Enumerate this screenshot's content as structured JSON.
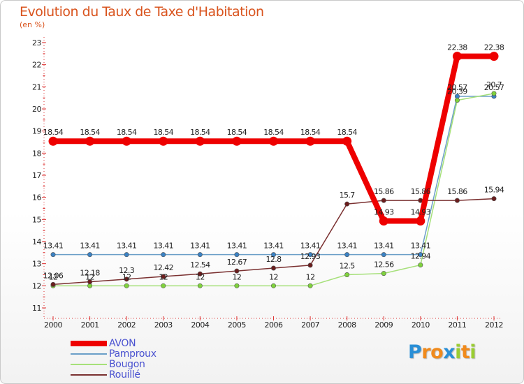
{
  "chart_data": {
    "type": "line",
    "title": "Evolution du Taux de Taxe d'Habitation",
    "subtitle": "(en %)",
    "xlabel": "",
    "ylabel": "(en %)",
    "categories": [
      "2000",
      "2001",
      "2002",
      "2003",
      "2004",
      "2005",
      "2006",
      "2007",
      "2008",
      "2009",
      "2010",
      "2011",
      "2012"
    ],
    "ylim": [
      11,
      23
    ],
    "yticks": [
      "11",
      "12",
      "13",
      "14",
      "15",
      "16",
      "17",
      "18",
      "19",
      "20",
      "21",
      "22",
      "23"
    ],
    "grid": false,
    "legend_position": "bottom-left",
    "series": [
      {
        "name": "AVON",
        "color": "#ee0000",
        "emphasis": true,
        "values": [
          18.54,
          18.54,
          18.54,
          18.54,
          18.54,
          18.54,
          18.54,
          18.54,
          18.54,
          14.93,
          14.93,
          22.38,
          22.38
        ],
        "labels": [
          "18.54",
          "18.54",
          "18.54",
          "18.54",
          "18.54",
          "18.54",
          "18.54",
          "18.54",
          "18.54",
          "14.93",
          "14.93",
          "22.38",
          "22.38"
        ]
      },
      {
        "name": "Pamproux",
        "color": "#6b9fc8",
        "point_color": "#3b82c4",
        "values": [
          13.41,
          13.41,
          13.41,
          13.41,
          13.41,
          13.41,
          13.41,
          13.41,
          13.41,
          13.41,
          13.41,
          20.57,
          20.57
        ],
        "labels": [
          "13.41",
          "13.41",
          "13.41",
          "13.41",
          "13.41",
          "13.41",
          "13.41",
          "13.41",
          "13.41",
          "13.41",
          "13.41",
          "20.57",
          "20.57"
        ]
      },
      {
        "name": "Bougon",
        "color": "#a6e07a",
        "point_color": "#7fd23c",
        "values": [
          12,
          12,
          12,
          12,
          12,
          12,
          12,
          12,
          12.5,
          12.56,
          12.94,
          20.39,
          20.7
        ],
        "labels": [
          "12",
          "12",
          "12",
          "12",
          "12",
          "12",
          "12",
          "12",
          "12.5",
          "12.56",
          "12.94",
          "20.39",
          "20.7"
        ]
      },
      {
        "name": "Rouillé",
        "color": "#7a3030",
        "point_color": "#6b1d1d",
        "values": [
          12.06,
          12.18,
          12.3,
          12.42,
          12.54,
          12.67,
          12.8,
          12.93,
          15.7,
          15.86,
          15.86,
          15.86,
          15.94
        ],
        "labels": [
          "12.06",
          "12.18",
          "12.3",
          "12.42",
          "12.54",
          "12.67",
          "12.8",
          "12.93",
          "15.7",
          "15.86",
          "15.86",
          "15.86",
          "15.94"
        ]
      }
    ]
  },
  "logo": {
    "letters": [
      "P",
      "r",
      "o",
      "x",
      "i",
      "t",
      "i"
    ],
    "colors": [
      "#2a8fd6",
      "#f08a1c",
      "#f08a1c",
      "#2a8fd6",
      "#9acd32",
      "#f08a1c",
      "#9acd32"
    ]
  }
}
